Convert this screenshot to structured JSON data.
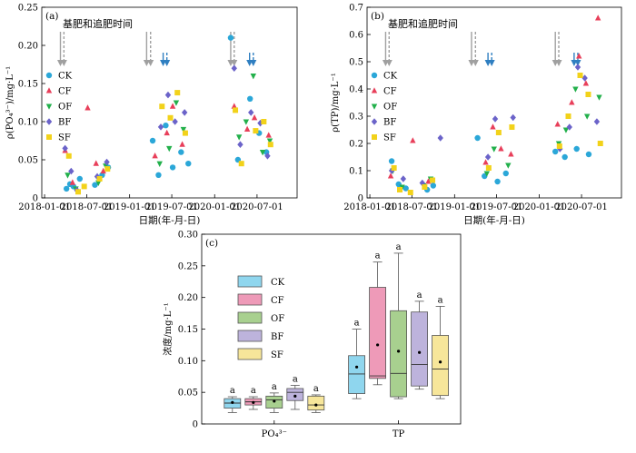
{
  "chart_data": [
    {
      "panel": "(a)",
      "type": "scatter",
      "ylabel": "ρ(PO₄³⁻)/mg·L⁻¹",
      "xlabel": "日期(年-月-日)",
      "x_ticks": [
        "2018-01-01",
        "2018-07-01",
        "2019-01-01",
        "2019-07-01",
        "2020-01-01",
        "2020-07-01"
      ],
      "y_ticks": [
        "0",
        "0.05",
        "0.10",
        "0.15",
        "0.20",
        "0.25"
      ],
      "xlim": [
        "2017-12-20",
        "2020-12-20"
      ],
      "ylim": [
        0,
        0.25
      ],
      "annotation": "基肥和追肥时间",
      "legend": [
        "CK",
        "CF",
        "OF",
        "BF",
        "SF"
      ],
      "legend_position": "left",
      "fert_dates_gray_solid": [
        "2018-03-10",
        "2019-03-15",
        "2020-03-10"
      ],
      "fert_dates_gray_dashed": [
        "2018-03-25",
        "2019-04-01",
        "2020-03-25"
      ],
      "fert_dates_blue_solid": [
        "2019-05-25",
        "2020-05-30"
      ],
      "fert_dates_blue_dashed": [
        "2019-06-10",
        "2020-06-15"
      ],
      "series": [
        {
          "name": "CK",
          "points": [
            [
              "2018-04-05",
              0.012
            ],
            [
              "2018-04-20",
              0.018
            ],
            [
              "2018-05-05",
              0.015
            ],
            [
              "2018-06-01",
              0.025
            ],
            [
              "2018-08-05",
              0.017
            ],
            [
              "2018-09-05",
              0.03
            ],
            [
              "2018-10-01",
              0.04
            ],
            [
              "2019-04-10",
              0.075
            ],
            [
              "2019-05-05",
              0.03
            ],
            [
              "2019-06-05",
              0.095
            ],
            [
              "2019-07-05",
              0.04
            ],
            [
              "2019-08-10",
              0.06
            ],
            [
              "2019-09-10",
              0.045
            ],
            [
              "2020-03-10",
              0.21
            ],
            [
              "2020-04-10",
              0.05
            ],
            [
              "2020-06-01",
              0.13
            ],
            [
              "2020-07-10",
              0.085
            ],
            [
              "2020-08-10",
              0.06
            ]
          ]
        },
        {
          "name": "CF",
          "points": [
            [
              "2018-03-30",
              0.062
            ],
            [
              "2018-05-01",
              0.02
            ],
            [
              "2018-07-05",
              0.118
            ],
            [
              "2018-08-10",
              0.045
            ],
            [
              "2018-09-10",
              0.035
            ],
            [
              "2019-04-20",
              0.055
            ],
            [
              "2019-06-10",
              0.085
            ],
            [
              "2019-07-05",
              0.12
            ],
            [
              "2019-08-15",
              0.07
            ],
            [
              "2020-03-25",
              0.12
            ],
            [
              "2020-05-20",
              0.09
            ],
            [
              "2020-06-20",
              0.105
            ],
            [
              "2020-08-20",
              0.082
            ]
          ]
        },
        {
          "name": "OF",
          "points": [
            [
              "2018-04-10",
              0.03
            ],
            [
              "2018-05-15",
              0.012
            ],
            [
              "2018-08-20",
              0.02
            ],
            [
              "2018-09-20",
              0.042
            ],
            [
              "2019-05-10",
              0.045
            ],
            [
              "2019-06-20",
              0.065
            ],
            [
              "2019-07-20",
              0.125
            ],
            [
              "2019-08-20",
              0.09
            ],
            [
              "2020-04-15",
              0.08
            ],
            [
              "2020-05-15",
              0.1
            ],
            [
              "2020-06-15",
              0.16
            ],
            [
              "2020-07-25",
              0.06
            ],
            [
              "2020-08-25",
              0.075
            ]
          ]
        },
        {
          "name": "BF",
          "points": [
            [
              "2018-03-30",
              0.065
            ],
            [
              "2018-04-25",
              0.035
            ],
            [
              "2018-05-20",
              0.01
            ],
            [
              "2018-08-15",
              0.028
            ],
            [
              "2018-09-25",
              0.047
            ],
            [
              "2019-05-15",
              0.093
            ],
            [
              "2019-06-15",
              0.135
            ],
            [
              "2019-07-15",
              0.1
            ],
            [
              "2019-08-25",
              0.112
            ],
            [
              "2020-03-25",
              0.17
            ],
            [
              "2020-04-20",
              0.07
            ],
            [
              "2020-06-05",
              0.112
            ],
            [
              "2020-07-15",
              0.098
            ],
            [
              "2020-08-15",
              0.055
            ]
          ]
        },
        {
          "name": "SF",
          "points": [
            [
              "2018-04-15",
              0.055
            ],
            [
              "2018-05-25",
              0.008
            ],
            [
              "2018-06-20",
              0.015
            ],
            [
              "2018-08-25",
              0.025
            ],
            [
              "2018-09-28",
              0.038
            ],
            [
              "2019-05-20",
              0.12
            ],
            [
              "2019-06-25",
              0.105
            ],
            [
              "2019-07-25",
              0.138
            ],
            [
              "2019-08-28",
              0.085
            ],
            [
              "2020-03-30",
              0.115
            ],
            [
              "2020-04-25",
              0.045
            ],
            [
              "2020-06-25",
              0.088
            ],
            [
              "2020-07-30",
              0.1
            ],
            [
              "2020-08-28",
              0.07
            ]
          ]
        }
      ]
    },
    {
      "panel": "(b)",
      "type": "scatter",
      "ylabel": "ρ(TP)/mg·L⁻¹",
      "xlabel": "日期(年-月-日)",
      "x_ticks": [
        "2018-01-01",
        "2018-07-01",
        "2019-01-01",
        "2019-07-01",
        "2020-01-01",
        "2020-07-01"
      ],
      "y_ticks": [
        "0",
        "0.1",
        "0.2",
        "0.3",
        "0.4",
        "0.5",
        "0.6",
        "0.7"
      ],
      "xlim": [
        "2017-12-20",
        "2020-12-20"
      ],
      "ylim": [
        0,
        0.7
      ],
      "annotation": "基肥和追肥时间",
      "legend": [
        "CK",
        "CF",
        "OF",
        "BF",
        "SF"
      ],
      "legend_position": "left",
      "fert_dates_gray_solid": [
        "2018-03-10",
        "2019-03-15",
        "2020-03-10"
      ],
      "fert_dates_gray_dashed": [
        "2018-03-25",
        "2019-04-01",
        "2020-03-25"
      ],
      "fert_dates_blue_solid": [
        "2019-05-25",
        "2020-05-30"
      ],
      "fert_dates_blue_dashed": [
        "2019-06-10",
        "2020-06-15"
      ],
      "series": [
        {
          "name": "CK",
          "points": [
            [
              "2018-04-05",
              0.135
            ],
            [
              "2018-05-05",
              0.05
            ],
            [
              "2018-06-05",
              0.035
            ],
            [
              "2018-09-05",
              0.03
            ],
            [
              "2018-10-01",
              0.045
            ],
            [
              "2019-04-10",
              0.22
            ],
            [
              "2019-05-10",
              0.08
            ],
            [
              "2019-07-05",
              0.06
            ],
            [
              "2019-08-10",
              0.09
            ],
            [
              "2020-03-10",
              0.17
            ],
            [
              "2020-04-20",
              0.15
            ],
            [
              "2020-06-10",
              0.18
            ],
            [
              "2020-08-01",
              0.16
            ]
          ]
        },
        {
          "name": "CF",
          "points": [
            [
              "2018-04-01",
              0.08
            ],
            [
              "2018-07-05",
              0.21
            ],
            [
              "2018-09-10",
              0.06
            ],
            [
              "2019-05-15",
              0.13
            ],
            [
              "2019-06-15",
              0.26
            ],
            [
              "2019-07-20",
              0.18
            ],
            [
              "2019-09-01",
              0.16
            ],
            [
              "2020-03-20",
              0.27
            ],
            [
              "2020-05-20",
              0.35
            ],
            [
              "2020-06-20",
              0.52
            ],
            [
              "2020-07-20",
              0.42
            ],
            [
              "2020-09-10",
              0.66
            ]
          ]
        },
        {
          "name": "OF",
          "points": [
            [
              "2018-04-10",
              0.1
            ],
            [
              "2018-05-20",
              0.04
            ],
            [
              "2018-08-20",
              0.045
            ],
            [
              "2018-09-20",
              0.07
            ],
            [
              "2019-05-20",
              0.09
            ],
            [
              "2019-06-20",
              0.18
            ],
            [
              "2019-08-20",
              0.12
            ],
            [
              "2020-03-25",
              0.2
            ],
            [
              "2020-04-25",
              0.25
            ],
            [
              "2020-06-05",
              0.4
            ],
            [
              "2020-07-25",
              0.3
            ],
            [
              "2020-09-15",
              0.37
            ]
          ]
        },
        {
          "name": "BF",
          "points": [
            [
              "2018-04-05",
              0.1
            ],
            [
              "2018-05-25",
              0.07
            ],
            [
              "2018-08-15",
              0.055
            ],
            [
              "2018-11-01",
              0.22
            ],
            [
              "2019-05-25",
              0.15
            ],
            [
              "2019-06-25",
              0.29
            ],
            [
              "2019-09-10",
              0.295
            ],
            [
              "2020-03-30",
              0.18
            ],
            [
              "2020-05-10",
              0.26
            ],
            [
              "2020-06-15",
              0.48
            ],
            [
              "2020-07-15",
              0.44
            ],
            [
              "2020-09-05",
              0.28
            ]
          ]
        },
        {
          "name": "SF",
          "points": [
            [
              "2018-04-15",
              0.11
            ],
            [
              "2018-05-10",
              0.03
            ],
            [
              "2018-06-25",
              0.02
            ],
            [
              "2018-08-25",
              0.04
            ],
            [
              "2018-09-28",
              0.065
            ],
            [
              "2019-05-28",
              0.11
            ],
            [
              "2019-07-10",
              0.24
            ],
            [
              "2019-09-05",
              0.26
            ],
            [
              "2020-03-28",
              0.19
            ],
            [
              "2020-05-05",
              0.3
            ],
            [
              "2020-06-25",
              0.45
            ],
            [
              "2020-07-30",
              0.38
            ],
            [
              "2020-09-20",
              0.2
            ]
          ]
        }
      ]
    },
    {
      "panel": "(c)",
      "type": "box",
      "ylabel": "浓度/mg·L⁻¹",
      "categories": [
        "PO₄³⁻",
        "TP"
      ],
      "y_ticks": [
        "0",
        "0.05",
        "0.10",
        "0.15",
        "0.20",
        "0.25",
        "0.30"
      ],
      "ylim": [
        0,
        0.3
      ],
      "legend": [
        "CK",
        "CF",
        "OF",
        "BF",
        "SF"
      ],
      "legend_position": "upper-left",
      "significance_letter": "a",
      "series": [
        {
          "name": "CK",
          "color": "#8fd6ee",
          "boxes": [
            {
              "whisker_low": 0.018,
              "q1": 0.025,
              "median": 0.033,
              "q3": 0.04,
              "whisker_high": 0.043,
              "mean": 0.034
            },
            {
              "whisker_low": 0.04,
              "q1": 0.048,
              "median": 0.079,
              "q3": 0.108,
              "whisker_high": 0.15,
              "mean": 0.09
            }
          ]
        },
        {
          "name": "CF",
          "color": "#ee9ab8",
          "boxes": [
            {
              "whisker_low": 0.023,
              "q1": 0.03,
              "median": 0.035,
              "q3": 0.04,
              "whisker_high": 0.043,
              "mean": 0.034
            },
            {
              "whisker_low": 0.062,
              "q1": 0.072,
              "median": 0.076,
              "q3": 0.216,
              "whisker_high": 0.256,
              "mean": 0.125
            }
          ]
        },
        {
          "name": "OF",
          "color": "#a8d08f",
          "boxes": [
            {
              "whisker_low": 0.018,
              "q1": 0.025,
              "median": 0.038,
              "q3": 0.044,
              "whisker_high": 0.049,
              "mean": 0.036
            },
            {
              "whisker_low": 0.04,
              "q1": 0.043,
              "median": 0.08,
              "q3": 0.179,
              "whisker_high": 0.27,
              "mean": 0.115
            }
          ]
        },
        {
          "name": "BF",
          "color": "#bdb3dc",
          "boxes": [
            {
              "whisker_low": 0.023,
              "q1": 0.037,
              "median": 0.05,
              "q3": 0.056,
              "whisker_high": 0.061,
              "mean": 0.044
            },
            {
              "whisker_low": 0.055,
              "q1": 0.06,
              "median": 0.094,
              "q3": 0.177,
              "whisker_high": 0.194,
              "mean": 0.113
            }
          ]
        },
        {
          "name": "SF",
          "color": "#f7e69a",
          "boxes": [
            {
              "whisker_low": 0.018,
              "q1": 0.022,
              "median": 0.03,
              "q3": 0.044,
              "whisker_high": 0.046,
              "mean": 0.03
            },
            {
              "whisker_low": 0.04,
              "q1": 0.045,
              "median": 0.087,
              "q3": 0.14,
              "whisker_high": 0.186,
              "mean": 0.098
            }
          ]
        }
      ]
    }
  ],
  "colors": {
    "CK": "#2ba7d8",
    "CF": "#e83f5a",
    "OF": "#22b04b",
    "BF": "#6b63c9",
    "SF": "#f2d21a",
    "arrow_gray": "#a0a0a0",
    "arrow_blue": "#2f7fc1"
  }
}
